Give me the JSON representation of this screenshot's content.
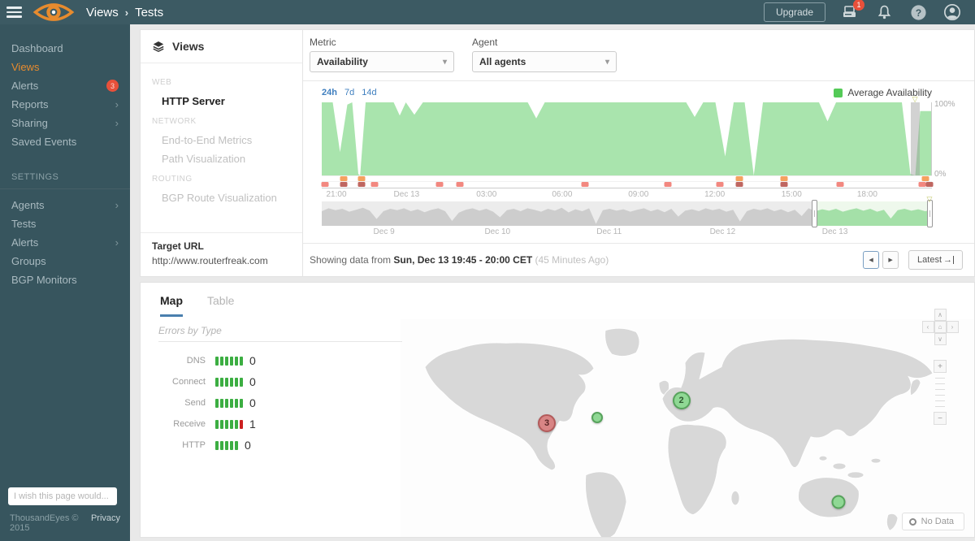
{
  "topbar": {
    "breadcrumb": {
      "section": "Views",
      "separator": "›",
      "page": "Tests"
    },
    "upgrade_label": "Upgrade",
    "device_badge": "1"
  },
  "sidebar": {
    "items": [
      {
        "label": "Dashboard"
      },
      {
        "label": "Views",
        "active": true
      },
      {
        "label": "Alerts",
        "badge": "3"
      },
      {
        "label": "Reports",
        "chevron": "›"
      },
      {
        "label": "Sharing",
        "chevron": "›"
      },
      {
        "label": "Saved Events"
      }
    ],
    "settings_label": "SETTINGS",
    "settings_items": [
      {
        "label": "Agents",
        "chevron": "›"
      },
      {
        "label": "Tests"
      },
      {
        "label": "Alerts",
        "chevron": "›"
      },
      {
        "label": "Groups"
      },
      {
        "label": "BGP Monitors"
      }
    ],
    "wish_placeholder": "I wish this page would...",
    "footer": {
      "copyright": "ThousandEyes © 2015",
      "privacy": "Privacy"
    }
  },
  "views_panel": {
    "title": "Views",
    "web_label": "WEB",
    "web_item": "HTTP Server",
    "network_label": "NETWORK",
    "network_item1": "End-to-End Metrics",
    "network_item2": "Path Visualization",
    "routing_label": "ROUTING",
    "routing_item": "BGP Route Visualization",
    "target_url_label": "Target URL",
    "target_url": "http://www.routerfreak.com"
  },
  "controls": {
    "metric_label": "Metric",
    "metric_value": "Availability",
    "agent_label": "Agent",
    "agent_value": "All agents",
    "caret": "▾"
  },
  "chart_data": {
    "type": "area",
    "title": "Average Availability",
    "legend_label": "Average Availability",
    "legend_color": "#54ca57",
    "range_tabs": {
      "r1": "24h",
      "r2": "7d",
      "r3": "14d"
    },
    "y_axis": {
      "max_label": "100%",
      "min_label": "0%",
      "ylim": [
        0,
        100
      ]
    },
    "x_ticks": {
      "t1": "21:00",
      "t2": "Dec 13",
      "t3": "03:00",
      "t4": "06:00",
      "t5": "09:00",
      "t6": "12:00",
      "t7": "15:00",
      "t8": "18:00"
    },
    "availability_area": [
      [
        0,
        100
      ],
      [
        1.8,
        100
      ],
      [
        3.0,
        32
      ],
      [
        4.2,
        97
      ],
      [
        5.0,
        100
      ],
      [
        6.0,
        2
      ],
      [
        6.3,
        0
      ],
      [
        7.2,
        100
      ],
      [
        11.8,
        100
      ],
      [
        12.8,
        82
      ],
      [
        13.8,
        100
      ],
      [
        15.2,
        83
      ],
      [
        16.6,
        100
      ],
      [
        33.8,
        100
      ],
      [
        35.2,
        78
      ],
      [
        36.6,
        100
      ],
      [
        59.8,
        100
      ],
      [
        61.2,
        80
      ],
      [
        62.6,
        100
      ],
      [
        64.6,
        100
      ],
      [
        66.2,
        26
      ],
      [
        67.6,
        100
      ],
      [
        69.4,
        100
      ],
      [
        70.9,
        0
      ],
      [
        72.4,
        100
      ],
      [
        81.6,
        100
      ],
      [
        83.0,
        74
      ],
      [
        84.4,
        100
      ],
      [
        95.2,
        100
      ],
      [
        96.6,
        2
      ],
      [
        97.4,
        0
      ],
      [
        98.2,
        88
      ],
      [
        100,
        88
      ]
    ],
    "selection": {
      "left": 96.6,
      "width": 1.5
    },
    "alert_markers": [
      {
        "x": 3.6,
        "row": "top",
        "c": "o"
      },
      {
        "x": 6.5,
        "row": "top",
        "c": "o"
      },
      {
        "x": 68.4,
        "row": "top",
        "c": "o"
      },
      {
        "x": 75.8,
        "row": "top",
        "c": "o"
      },
      {
        "x": 99.0,
        "row": "top",
        "c": "o"
      },
      {
        "x": 0.5,
        "row": "bottom",
        "c": "r"
      },
      {
        "x": 3.6,
        "row": "bottom",
        "c": "d"
      },
      {
        "x": 6.5,
        "row": "bottom",
        "c": "d"
      },
      {
        "x": 8.6,
        "row": "bottom",
        "c": "r"
      },
      {
        "x": 19.3,
        "row": "bottom",
        "c": "r"
      },
      {
        "x": 22.6,
        "row": "bottom",
        "c": "r"
      },
      {
        "x": 43.2,
        "row": "bottom",
        "c": "r"
      },
      {
        "x": 56.7,
        "row": "bottom",
        "c": "r"
      },
      {
        "x": 65.3,
        "row": "bottom",
        "c": "r"
      },
      {
        "x": 68.4,
        "row": "bottom",
        "c": "d"
      },
      {
        "x": 75.8,
        "row": "bottom",
        "c": "d"
      },
      {
        "x": 85.0,
        "row": "bottom",
        "c": "r"
      },
      {
        "x": 98.4,
        "row": "bottom",
        "c": "r"
      },
      {
        "x": 99.6,
        "row": "bottom",
        "c": "d"
      }
    ],
    "brush": {
      "values": [
        60,
        72,
        64,
        70,
        58,
        66,
        74,
        62,
        28,
        60,
        70,
        64,
        72,
        60,
        68,
        56,
        66,
        72,
        60,
        20,
        54,
        66,
        72,
        62,
        70,
        58,
        35,
        64,
        70,
        60,
        72,
        66,
        58,
        70,
        62,
        74,
        55,
        68,
        60,
        72,
        8,
        64,
        70,
        62,
        68,
        58,
        66,
        72,
        60,
        68,
        56,
        70,
        38,
        62,
        68,
        60,
        72,
        64,
        70,
        58,
        66,
        18,
        60,
        70,
        64,
        72,
        60,
        68,
        56,
        66,
        40,
        72,
        60,
        68,
        62,
        70,
        58,
        66,
        72,
        62,
        70,
        58,
        66,
        30,
        64,
        70,
        62,
        68,
        60,
        66
      ],
      "selected_from": 80.7,
      "selected_to": 99.6,
      "labels": {
        "d1": "Dec 9",
        "d2": "Dec 10",
        "d3": "Dec 11",
        "d4": "Dec 12",
        "d5": "Dec 13"
      }
    }
  },
  "status_row": {
    "prefix": "Showing data from",
    "range": "Sun, Dec 13 19:45 - 20:00 CET",
    "ago": "(45 Minutes Ago)",
    "prev": "◀",
    "next": "▶",
    "latest_label": "Latest",
    "latest_icon": "→"
  },
  "lower": {
    "tabs": {
      "map": "Map",
      "table": "Table"
    },
    "errors_title": "Errors by Type",
    "errors": [
      {
        "label": "DNS",
        "value": "0",
        "segments": [
          "g",
          "g",
          "g",
          "g",
          "g",
          "g"
        ]
      },
      {
        "label": "Connect",
        "value": "0",
        "segments": [
          "g",
          "g",
          "g",
          "g",
          "g",
          "g"
        ]
      },
      {
        "label": "Send",
        "value": "0",
        "segments": [
          "g",
          "g",
          "g",
          "g",
          "g",
          "g"
        ]
      },
      {
        "label": "Receive",
        "value": "1",
        "segments": [
          "g",
          "g",
          "g",
          "g",
          "g",
          "r"
        ]
      },
      {
        "label": "HTTP",
        "value": "0",
        "segments": [
          "g",
          "g",
          "g",
          "g",
          "g"
        ]
      }
    ],
    "no_data_label": "No Data"
  },
  "map": {
    "markers": [
      {
        "x": 25.0,
        "y": 47.5,
        "label": "3",
        "color": "red",
        "size": "large"
      },
      {
        "x": 33.6,
        "y": 44.9,
        "label": "",
        "color": "green",
        "size": "small"
      },
      {
        "x": 48.0,
        "y": 37.0,
        "label": "2",
        "color": "green",
        "size": "large"
      },
      {
        "x": 74.9,
        "y": 83.5,
        "label": "",
        "color": "green",
        "size": "medium"
      }
    ],
    "controls": {
      "up": "∧",
      "down": "∨",
      "left": "‹",
      "right": "›",
      "home": "⌂",
      "plus": "+",
      "minus": "−"
    }
  },
  "colors": {
    "topbar": "#3c5a63",
    "sidebar": "#37555e",
    "accent_orange": "#e78b2e",
    "badge_red": "#e8503a",
    "chart_green": "#a9e4ad",
    "link_blue": "#3f7fbf",
    "tab_underline": "#4a7fae"
  }
}
